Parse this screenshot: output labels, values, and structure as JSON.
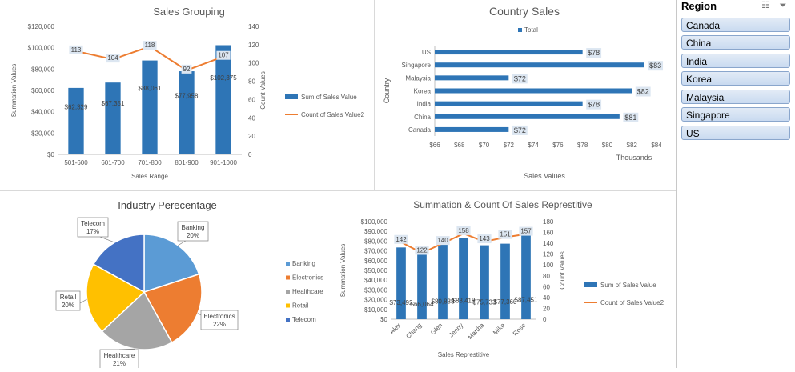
{
  "chart_data": [
    {
      "id": "sales-grouping",
      "type": "bar",
      "title": "Sales Grouping",
      "categories": [
        "501-600",
        "601-700",
        "701-800",
        "801-900",
        "901-1000"
      ],
      "series": [
        {
          "name": "Sum of Sales Value",
          "type": "bar",
          "axis": "left",
          "values": [
            62329,
            67351,
            88061,
            77958,
            102375
          ],
          "labels": [
            "$62,329",
            "$67,351",
            "$88,061",
            "$77,958",
            "$102,375"
          ]
        },
        {
          "name": "Count of Sales Value2",
          "type": "line",
          "axis": "right",
          "values": [
            113,
            104,
            118,
            92,
            107
          ],
          "labels": [
            "113",
            "104",
            "118",
            "92",
            "107"
          ]
        }
      ],
      "xlabel": "Sales Range",
      "ylabel": "Summation Values",
      "y2label": "Count Values",
      "ylim": [
        0,
        120000
      ],
      "y2lim": [
        0,
        140
      ],
      "yticks": [
        "$0",
        "$20,000",
        "$40,000",
        "$60,000",
        "$80,000",
        "$100,000",
        "$120,000"
      ],
      "y2ticks": [
        "0",
        "20",
        "40",
        "60",
        "80",
        "100",
        "120",
        "140"
      ],
      "colors": {
        "bar": "#2e75b6",
        "line": "#ed7d31"
      },
      "legend": "right"
    },
    {
      "id": "country-sales",
      "type": "bar",
      "orientation": "horizontal",
      "title": "Country Sales",
      "categories": [
        "US",
        "Singapore",
        "Malaysia",
        "Korea",
        "India",
        "China",
        "Canada"
      ],
      "series": [
        {
          "name": "Total",
          "values": [
            78,
            83,
            72,
            82,
            78,
            81,
            72
          ],
          "labels": [
            "$78",
            "$83",
            "$72",
            "$82",
            "$78",
            "$81",
            "$72"
          ]
        }
      ],
      "xlabel": "Sales Values",
      "xunit": "Thousands",
      "ylabel": "Country",
      "xlim": [
        66,
        84
      ],
      "xticks": [
        "$66",
        "$68",
        "$70",
        "$72",
        "$74",
        "$76",
        "$78",
        "$80",
        "$82",
        "$84"
      ],
      "colors": {
        "bar": "#2e75b6"
      },
      "legend": "top"
    },
    {
      "id": "industry-percentage",
      "type": "pie",
      "title": "Industry Perecentage",
      "categories": [
        "Banking",
        "Electronics",
        "Healthcare",
        "Retail",
        "Telecom"
      ],
      "values": [
        20,
        22,
        21,
        20,
        17
      ],
      "labels": [
        "20%",
        "22%",
        "21%",
        "20%",
        "17%"
      ],
      "colors": [
        "#5b9bd5",
        "#ed7d31",
        "#a5a5a5",
        "#ffc000",
        "#4472c4"
      ],
      "legend": "right"
    },
    {
      "id": "sales-representative",
      "type": "bar",
      "title": "Summation & Count Of Sales Represtitive",
      "categories": [
        "Alex",
        "Chang",
        "Glen",
        "Jenny",
        "Martha",
        "Mike",
        "Rose"
      ],
      "series": [
        {
          "name": "Sum of Sales Value",
          "type": "bar",
          "axis": "left",
          "values": [
            73492,
            66064,
            80838,
            83418,
            75733,
            77360,
            87451
          ],
          "labels": [
            "$73,492",
            "$66,064",
            "$80,838",
            "$83,418",
            "$75,733",
            "$77,360",
            "$87,451"
          ]
        },
        {
          "name": "Count of Sales Value2",
          "type": "line",
          "axis": "right",
          "values": [
            142,
            122,
            140,
            158,
            143,
            151,
            157
          ],
          "labels": [
            "142",
            "122",
            "140",
            "158",
            "143",
            "151",
            "157"
          ]
        }
      ],
      "xlabel": "Sales Represtitive",
      "ylabel": "Summation Values",
      "y2label": "Count Values",
      "ylim": [
        0,
        100000
      ],
      "y2lim": [
        0,
        180
      ],
      "yticks": [
        "$0",
        "$10,000",
        "$20,000",
        "$30,000",
        "$40,000",
        "$50,000",
        "$60,000",
        "$70,000",
        "$80,000",
        "$90,000",
        "$100,000"
      ],
      "y2ticks": [
        "0",
        "20",
        "40",
        "60",
        "80",
        "100",
        "120",
        "140",
        "160",
        "180"
      ],
      "colors": {
        "bar": "#2e75b6",
        "line": "#ed7d31"
      },
      "legend": "right"
    }
  ],
  "slicer": {
    "title": "Region",
    "icons": [
      "multi-select-icon",
      "clear-filter-icon"
    ],
    "items": [
      "Canada",
      "China",
      "India",
      "Korea",
      "Malaysia",
      "Singapore",
      "US"
    ]
  }
}
